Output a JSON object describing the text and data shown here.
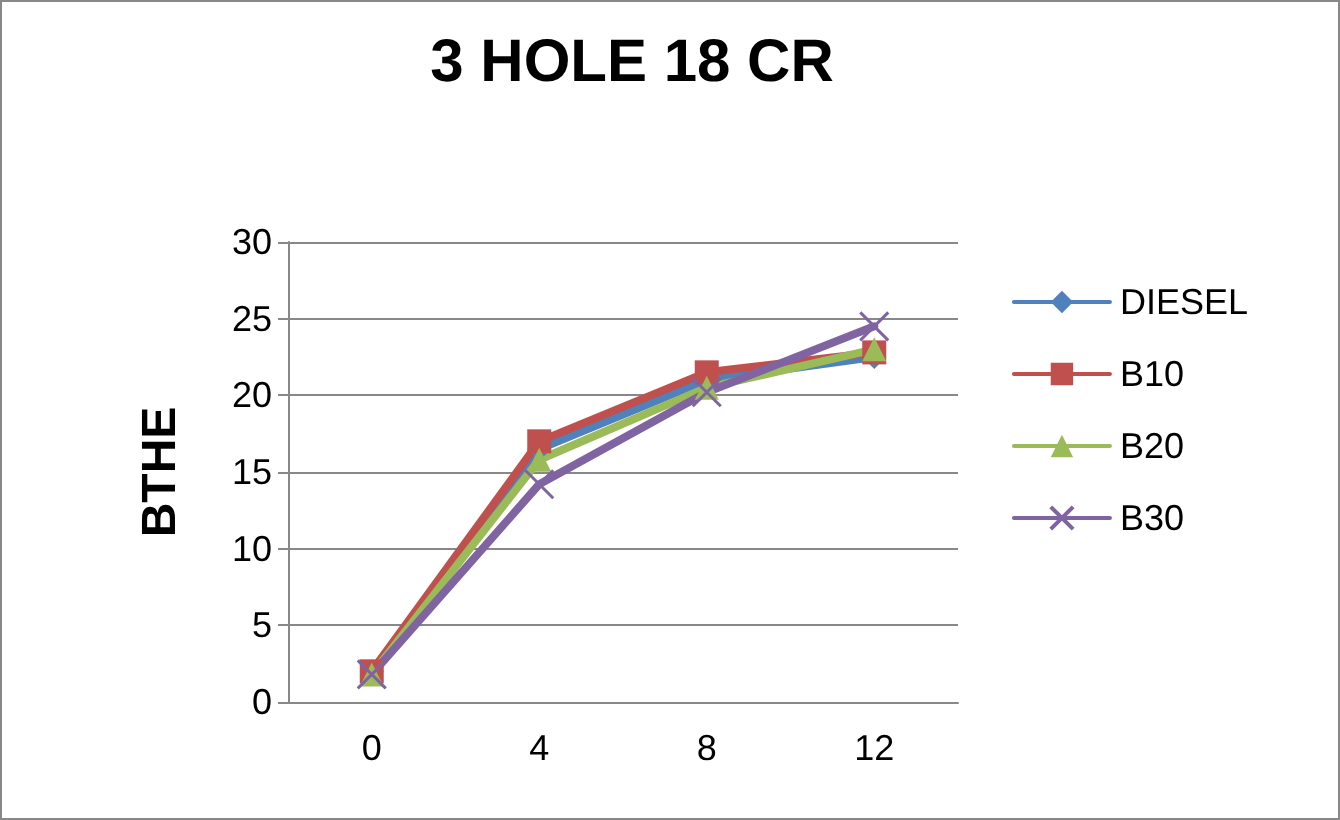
{
  "chart_data": {
    "type": "line",
    "title": "3 HOLE 18 CR",
    "ylabel": "BTHE",
    "categories": [
      "0",
      "4",
      "8",
      "12"
    ],
    "series": [
      {
        "name": "DIESEL",
        "color": "#4f81bd",
        "marker": "diamond",
        "values": [
          2,
          16.5,
          21,
          22.5
        ]
      },
      {
        "name": "B10",
        "color": "#c0504d",
        "marker": "square",
        "values": [
          2,
          17,
          21.5,
          22.8
        ]
      },
      {
        "name": "B20",
        "color": "#9bbb59",
        "marker": "triangle",
        "values": [
          1.8,
          15.8,
          20.5,
          23
        ]
      },
      {
        "name": "B30",
        "color": "#8064a2",
        "marker": "cross",
        "values": [
          1.8,
          14.2,
          20.2,
          24.5
        ]
      }
    ],
    "ylim": [
      0,
      30
    ],
    "yticks": [
      0,
      5,
      10,
      15,
      20,
      25,
      30
    ],
    "grid": "y",
    "legend": "right",
    "line_style": "solid"
  }
}
